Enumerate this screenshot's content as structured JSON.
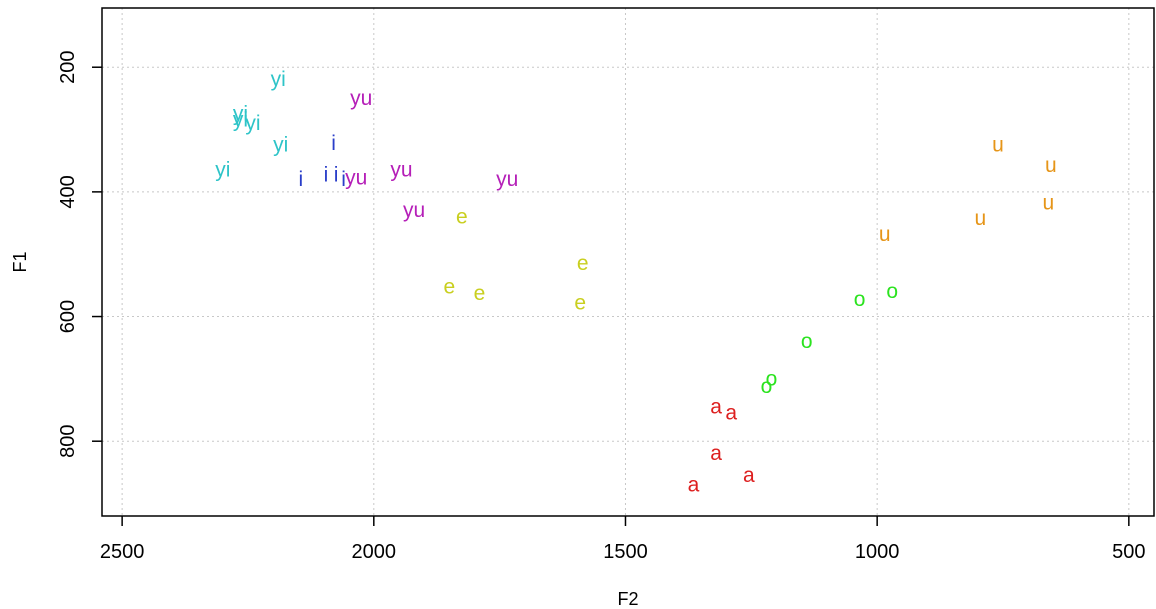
{
  "chart_data": {
    "type": "scatter",
    "title": "",
    "xlabel": "F2",
    "ylabel": "F1",
    "xlim": [
      2540,
      450
    ],
    "ylim": [
      920,
      105
    ],
    "x_reversed": true,
    "y_reversed": true,
    "grid": true,
    "x_ticks": [
      2500,
      2000,
      1500,
      1000,
      500
    ],
    "y_ticks": [
      200,
      400,
      600,
      800
    ],
    "colors": {
      "yi": "#2ec4c8",
      "i": "#2a3ec9",
      "yu": "#b51fb8",
      "e": "#c9cf1f",
      "o": "#2be31f",
      "a": "#dd1f1f",
      "u": "#e69518"
    },
    "points": [
      {
        "label": "yi",
        "x": 2190,
        "y": 220
      },
      {
        "label": "yi",
        "x": 2265,
        "y": 275
      },
      {
        "label": "yi",
        "x": 2265,
        "y": 285
      },
      {
        "label": "yi",
        "x": 2240,
        "y": 290
      },
      {
        "label": "yi",
        "x": 2185,
        "y": 325
      },
      {
        "label": "yi",
        "x": 2300,
        "y": 365
      },
      {
        "label": "i",
        "x": 2080,
        "y": 322
      },
      {
        "label": "i",
        "x": 2145,
        "y": 380
      },
      {
        "label": "i",
        "x": 2095,
        "y": 373
      },
      {
        "label": "i",
        "x": 2075,
        "y": 373
      },
      {
        "label": "i",
        "x": 2060,
        "y": 380
      },
      {
        "label": "yu",
        "x": 2025,
        "y": 250
      },
      {
        "label": "yu",
        "x": 1945,
        "y": 365
      },
      {
        "label": "yu",
        "x": 2035,
        "y": 378
      },
      {
        "label": "yu",
        "x": 1735,
        "y": 380
      },
      {
        "label": "yu",
        "x": 1920,
        "y": 430
      },
      {
        "label": "e",
        "x": 1825,
        "y": 440
      },
      {
        "label": "e",
        "x": 1585,
        "y": 515
      },
      {
        "label": "e",
        "x": 1850,
        "y": 553
      },
      {
        "label": "e",
        "x": 1790,
        "y": 563
      },
      {
        "label": "e",
        "x": 1590,
        "y": 578
      },
      {
        "label": "o",
        "x": 970,
        "y": 560
      },
      {
        "label": "o",
        "x": 1035,
        "y": 573
      },
      {
        "label": "o",
        "x": 1140,
        "y": 640
      },
      {
        "label": "o",
        "x": 1210,
        "y": 700
      },
      {
        "label": "o",
        "x": 1220,
        "y": 712
      },
      {
        "label": "a",
        "x": 1320,
        "y": 745
      },
      {
        "label": "a",
        "x": 1290,
        "y": 755
      },
      {
        "label": "a",
        "x": 1320,
        "y": 820
      },
      {
        "label": "a",
        "x": 1255,
        "y": 855
      },
      {
        "label": "a",
        "x": 1365,
        "y": 870
      },
      {
        "label": "u",
        "x": 760,
        "y": 325
      },
      {
        "label": "u",
        "x": 655,
        "y": 358
      },
      {
        "label": "u",
        "x": 660,
        "y": 418
      },
      {
        "label": "u",
        "x": 795,
        "y": 443
      },
      {
        "label": "u",
        "x": 985,
        "y": 468
      }
    ]
  }
}
